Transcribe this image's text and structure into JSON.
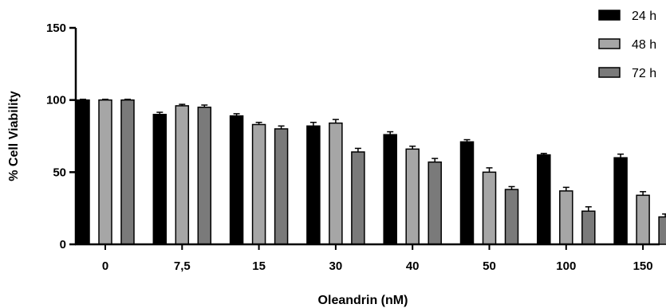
{
  "chart_data": {
    "type": "bar",
    "xlabel": "Oleandrin (nM)",
    "ylabel": "% Cell Viability",
    "ylim": [
      0,
      150
    ],
    "yticks": [
      0,
      50,
      100,
      150
    ],
    "categories": [
      "0",
      "7,5",
      "15",
      "30",
      "40",
      "50",
      "100",
      "150"
    ],
    "series": [
      {
        "name": "24 h",
        "color": "#000000",
        "values": [
          100,
          90,
          89,
          82,
          76,
          71,
          62,
          60
        ],
        "errors": [
          0.5,
          1.5,
          1.5,
          2.5,
          2,
          1.5,
          1,
          2.5
        ]
      },
      {
        "name": "48 h",
        "color": "#a6a6a6",
        "values": [
          100,
          96,
          83,
          84,
          66,
          50,
          37,
          34
        ],
        "errors": [
          0.5,
          1,
          1.5,
          2.5,
          2,
          3,
          2.5,
          2.5
        ]
      },
      {
        "name": "72 h",
        "color": "#7a7a7a",
        "values": [
          100,
          95,
          80,
          64,
          57,
          38,
          23,
          19
        ],
        "errors": [
          0.5,
          1.5,
          2,
          2.5,
          2.5,
          2,
          3,
          2
        ]
      }
    ],
    "legend_position": "top-right",
    "grid": false
  }
}
